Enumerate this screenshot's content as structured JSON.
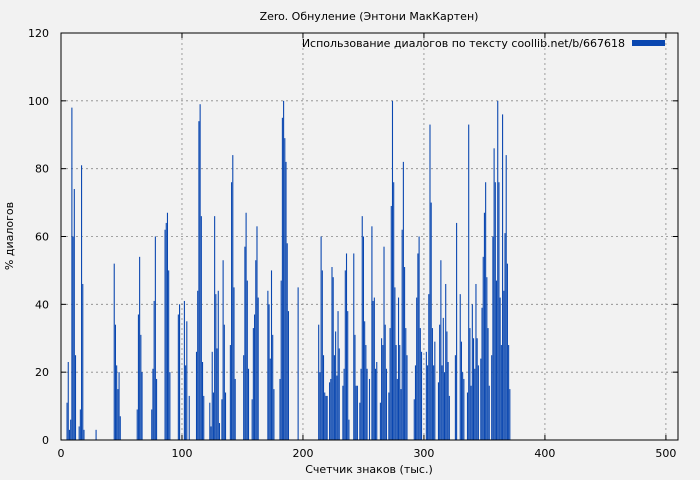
{
  "chart_data": {
    "type": "bar",
    "title": "Zero. Обнуление (Энтони МакКартен)",
    "xlabel": "Счетчик знаков (тыс.)",
    "ylabel": "% диалогов",
    "xlim": [
      0,
      510
    ],
    "ylim": [
      0,
      120
    ],
    "xticks": [
      0,
      100,
      200,
      300,
      400,
      500
    ],
    "yticks": [
      0,
      20,
      40,
      60,
      80,
      100,
      120
    ],
    "grid": true,
    "legend_position": "top-right",
    "series": [
      {
        "name": "Использование диалогов по тексту coollib.net/b/667618",
        "color": "#0a47b0",
        "x_start": 5,
        "x_step": 1,
        "values": [
          11,
          23,
          3,
          6,
          98,
          60,
          74,
          25,
          0,
          0,
          4,
          9,
          81,
          46,
          3,
          0,
          0,
          0,
          0,
          0,
          0,
          0,
          0,
          0,
          3,
          0,
          0,
          0,
          0,
          0,
          0,
          0,
          0,
          0,
          0,
          0,
          0,
          0,
          0,
          52,
          34,
          22,
          15,
          20,
          7,
          0,
          0,
          0,
          0,
          0,
          0,
          0,
          0,
          0,
          0,
          0,
          0,
          0,
          9,
          37,
          54,
          31,
          20,
          0,
          0,
          0,
          0,
          0,
          0,
          0,
          9,
          21,
          41,
          60,
          18,
          0,
          0,
          0,
          0,
          0,
          0,
          62,
          64,
          67,
          50,
          20,
          0,
          0,
          0,
          0,
          0,
          0,
          37,
          40,
          0,
          0,
          0,
          41,
          22,
          35,
          0,
          13,
          0,
          0,
          0,
          0,
          0,
          26,
          44,
          94,
          99,
          66,
          23,
          13,
          0,
          0,
          0,
          0,
          11,
          4,
          26,
          14,
          66,
          43,
          27,
          44,
          5,
          0,
          12,
          53,
          34,
          14,
          0,
          0,
          0,
          28,
          76,
          84,
          45,
          18,
          0,
          0,
          0,
          0,
          0,
          0,
          25,
          57,
          67,
          47,
          21,
          0,
          0,
          12,
          33,
          37,
          53,
          63,
          42,
          0,
          0,
          0,
          0,
          0,
          0,
          0,
          44,
          40,
          24,
          50,
          31,
          15,
          0,
          0,
          0,
          0,
          18,
          47,
          95,
          100,
          89,
          82,
          58,
          38,
          0,
          0,
          0,
          0,
          0,
          0,
          0,
          45,
          0,
          0,
          0,
          0,
          0,
          0,
          0,
          0,
          0,
          0,
          0,
          0,
          0,
          0,
          0,
          0,
          34,
          20,
          60,
          50,
          25,
          14,
          13,
          13,
          0,
          17,
          18,
          51,
          48,
          25,
          32,
          19,
          38,
          27,
          0,
          0,
          16,
          21,
          50,
          55,
          38,
          6,
          0,
          0,
          0,
          55,
          31,
          16,
          16,
          0,
          11,
          21,
          66,
          60,
          35,
          28,
          21,
          0,
          18,
          0,
          63,
          41,
          42,
          21,
          23,
          0,
          0,
          11,
          30,
          28,
          57,
          34,
          21,
          0,
          14,
          33,
          69,
          100,
          76,
          45,
          28,
          18,
          42,
          28,
          15,
          62,
          82,
          51,
          33,
          25,
          0,
          0,
          0,
          0,
          0,
          12,
          22,
          42,
          55,
          60,
          33,
          26,
          0,
          0,
          0,
          26,
          22,
          43,
          93,
          70,
          33,
          22,
          29,
          0,
          0,
          17,
          34,
          53,
          22,
          36,
          20,
          46,
          32,
          23,
          13,
          0,
          0,
          0,
          0,
          25,
          64,
          0,
          0,
          43,
          29,
          20,
          18,
          0,
          0,
          14,
          93,
          33,
          16,
          40,
          30,
          21,
          46,
          30,
          22,
          0,
          24,
          39,
          54,
          67,
          76,
          48,
          33,
          16,
          0,
          25,
          60,
          86,
          76,
          47,
          100,
          76,
          42,
          28,
          96,
          44,
          61,
          84,
          52,
          28,
          15,
          0,
          0,
          0
        ]
      }
    ]
  }
}
